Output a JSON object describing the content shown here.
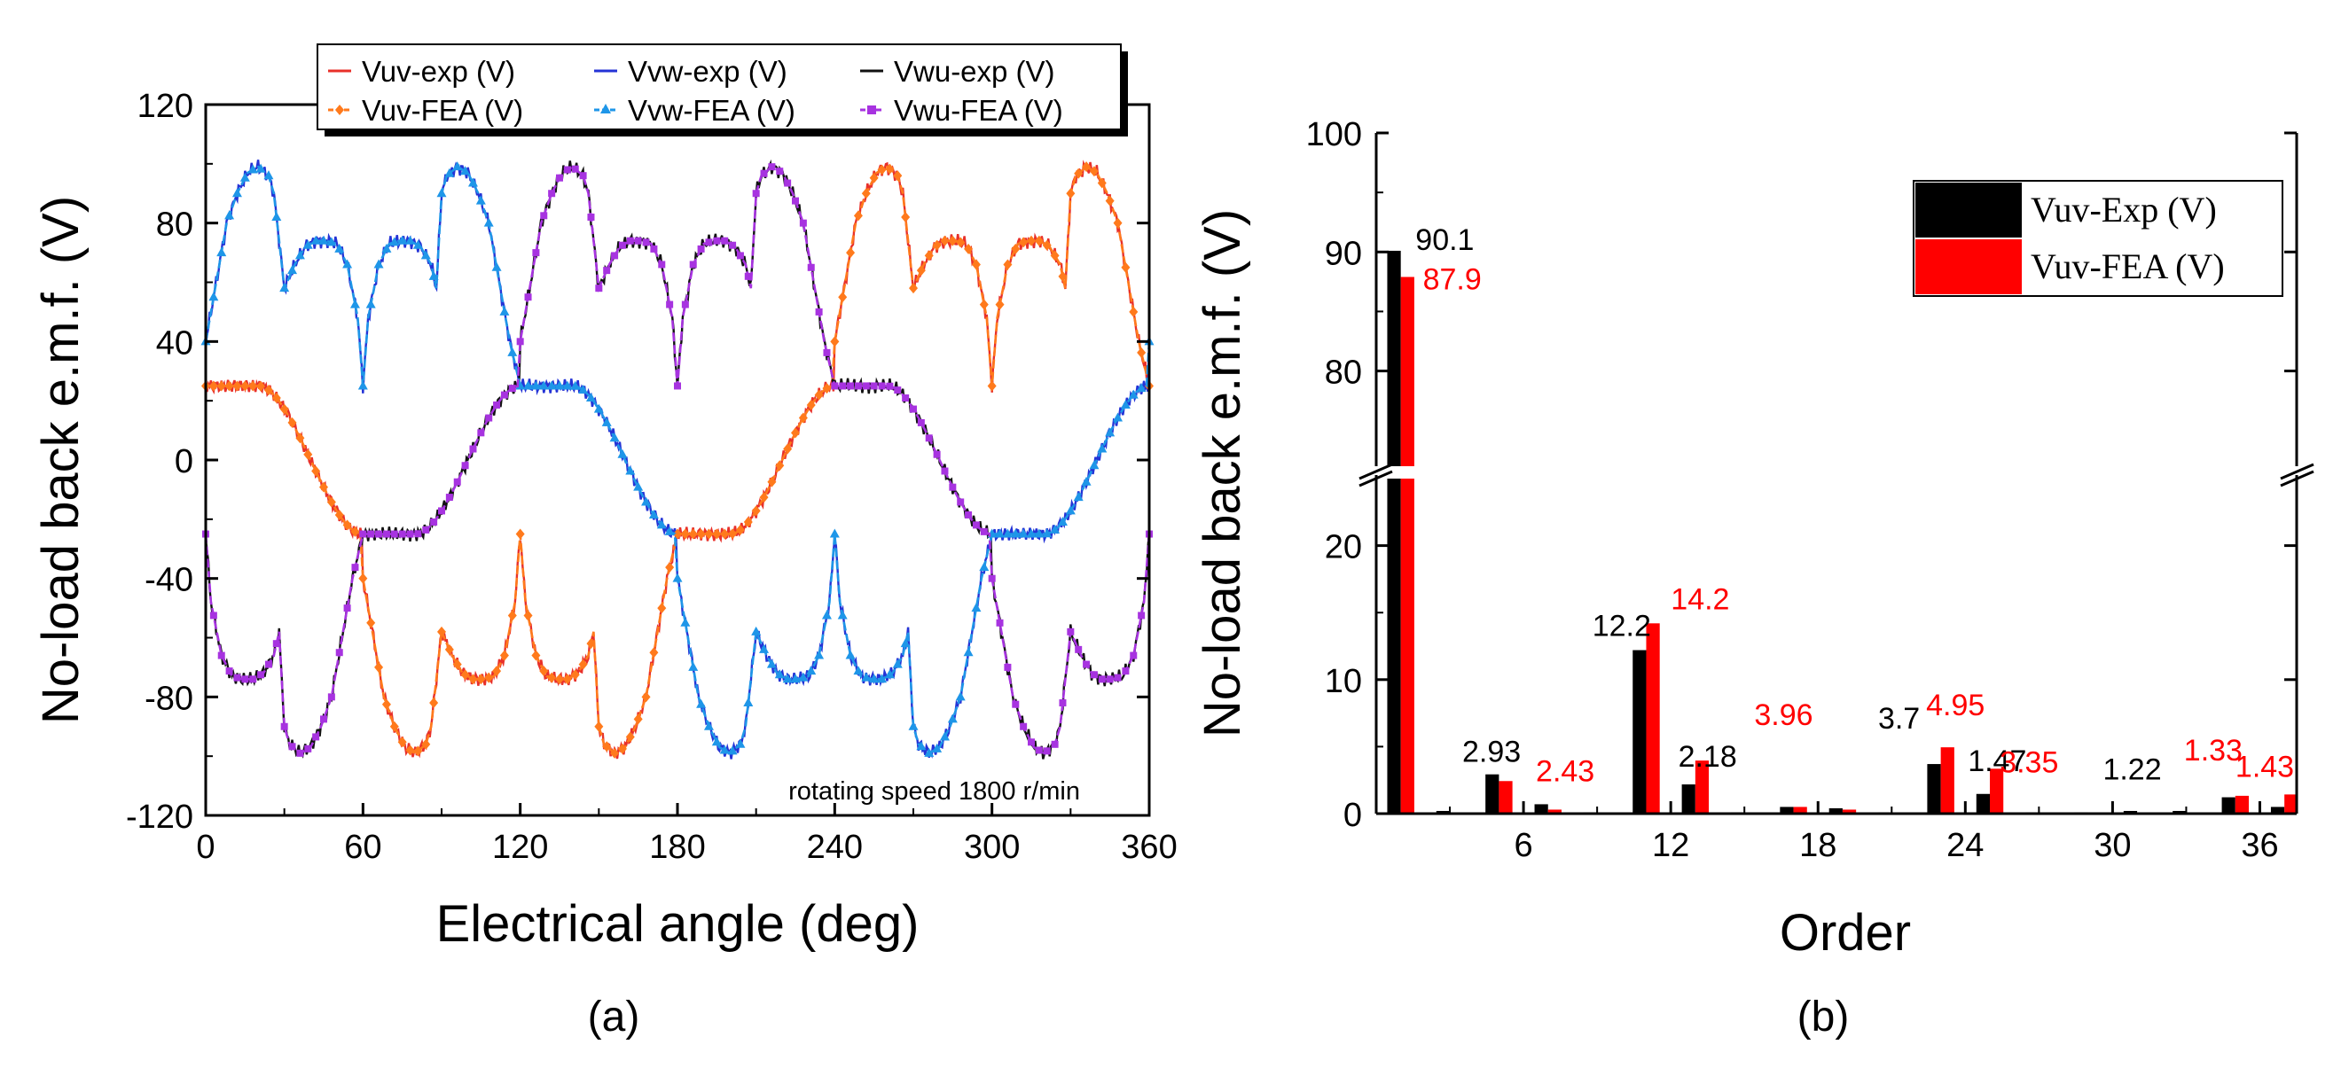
{
  "chart_data": [
    {
      "id": "a",
      "type": "line",
      "caption": "(a)",
      "xlabel": "Electrical angle (deg)",
      "ylabel": "No-load back e.m.f. (V)",
      "xlim": [
        0,
        360
      ],
      "ylim": [
        -120,
        120
      ],
      "xticks": [
        "0",
        "60",
        "120",
        "180",
        "240",
        "300",
        "360"
      ],
      "yticks": [
        "-120",
        "-80",
        "-40",
        "0",
        "40",
        "80",
        "120"
      ],
      "annotation": "rotating speed 1800 r/min",
      "waveform_template": {
        "description": "one 120-deg segment of line back-emf (positive polarity), degrees from segment start",
        "x": [
          0,
          4,
          8,
          12,
          16,
          20,
          24,
          26,
          30,
          34,
          38,
          42,
          46,
          50,
          54,
          58,
          60,
          62,
          66,
          70,
          74,
          78,
          82,
          86,
          88,
          90,
          92,
          96,
          100,
          104,
          108,
          112,
          116,
          120
        ],
        "values": [
          40,
          60,
          80,
          90,
          97,
          99,
          96,
          90,
          58,
          66,
          72,
          74,
          74,
          73,
          66,
          48,
          25,
          48,
          66,
          73,
          74,
          74,
          72,
          66,
          58,
          90,
          96,
          99,
          97,
          90,
          80,
          60,
          40,
          25
        ]
      },
      "flat_level": 25,
      "series": [
        {
          "name": "Vuv-exp (V)",
          "kind": "exp",
          "color": "#e8302a",
          "phase": 240,
          "marker": "none"
        },
        {
          "name": "Vvw-exp (V)",
          "kind": "exp",
          "color": "#2433d6",
          "phase": 0,
          "marker": "none"
        },
        {
          "name": "Vwu-exp (V)",
          "kind": "exp",
          "color": "#111111",
          "phase": 120,
          "marker": "none"
        },
        {
          "name": "Vuv-FEA (V)",
          "kind": "fea",
          "color": "#ff7a1c",
          "phase": 240,
          "marker": "diamond"
        },
        {
          "name": "Vvw-FEA (V)",
          "kind": "fea",
          "color": "#1e96e8",
          "phase": 0,
          "marker": "triangle"
        },
        {
          "name": "Vwu-FEA (V)",
          "kind": "fea",
          "color": "#a733e0",
          "phase": 120,
          "marker": "square"
        }
      ]
    },
    {
      "id": "b",
      "type": "bar",
      "caption": "(b)",
      "xlabel": "Order",
      "ylabel": "No-load back e.m.f. (V)",
      "xlim": [
        0,
        37.5
      ],
      "xticks": [
        "6",
        "12",
        "18",
        "24",
        "30",
        "36"
      ],
      "y_break": {
        "lower": [
          0,
          25
        ],
        "upper": [
          72,
          100
        ]
      },
      "yticks_lower": [
        "0",
        "10",
        "20"
      ],
      "yticks_upper": [
        "80",
        "90",
        "100"
      ],
      "legend_position": "top-right",
      "series": [
        {
          "name": "Vuv-Exp (V)",
          "color": "#000000",
          "orders": [
            1,
            3,
            5,
            7,
            9,
            11,
            13,
            15,
            17,
            19,
            21,
            23,
            25,
            27,
            29,
            31,
            33,
            35,
            37
          ],
          "values": [
            90.1,
            0.2,
            2.93,
            0.7,
            0.1,
            12.2,
            2.18,
            0.1,
            0.5,
            0.4,
            0.1,
            3.7,
            1.47,
            0.1,
            0.1,
            0.2,
            0.2,
            1.22,
            0.5
          ]
        },
        {
          "name": "Vuv-FEA (V)",
          "color": "#ff0000",
          "orders": [
            1,
            3,
            5,
            7,
            9,
            11,
            13,
            15,
            17,
            19,
            21,
            23,
            25,
            27,
            29,
            31,
            33,
            35,
            37
          ],
          "values": [
            87.9,
            0.0,
            2.43,
            0.3,
            0.0,
            14.2,
            3.96,
            0.0,
            0.5,
            0.3,
            0.0,
            4.95,
            3.35,
            0.0,
            0.0,
            0.0,
            0.0,
            1.33,
            1.43
          ]
        }
      ],
      "data_labels": [
        {
          "text": "90.1",
          "series": 0
        },
        {
          "text": "87.9",
          "series": 1
        },
        {
          "text": "2.93",
          "series": 0
        },
        {
          "text": "2.43",
          "series": 1
        },
        {
          "text": "12.2",
          "series": 0
        },
        {
          "text": "14.2",
          "series": 1
        },
        {
          "text": "2.18",
          "series": 0
        },
        {
          "text": "3.96",
          "series": 1
        },
        {
          "text": "3.7",
          "series": 0
        },
        {
          "text": "4.95",
          "series": 1
        },
        {
          "text": "1.47",
          "series": 0
        },
        {
          "text": "3.35",
          "series": 1
        },
        {
          "text": "1.22",
          "series": 0
        },
        {
          "text": "1.33",
          "series": 1
        },
        {
          "text": "1.43",
          "series": 1
        }
      ]
    }
  ]
}
